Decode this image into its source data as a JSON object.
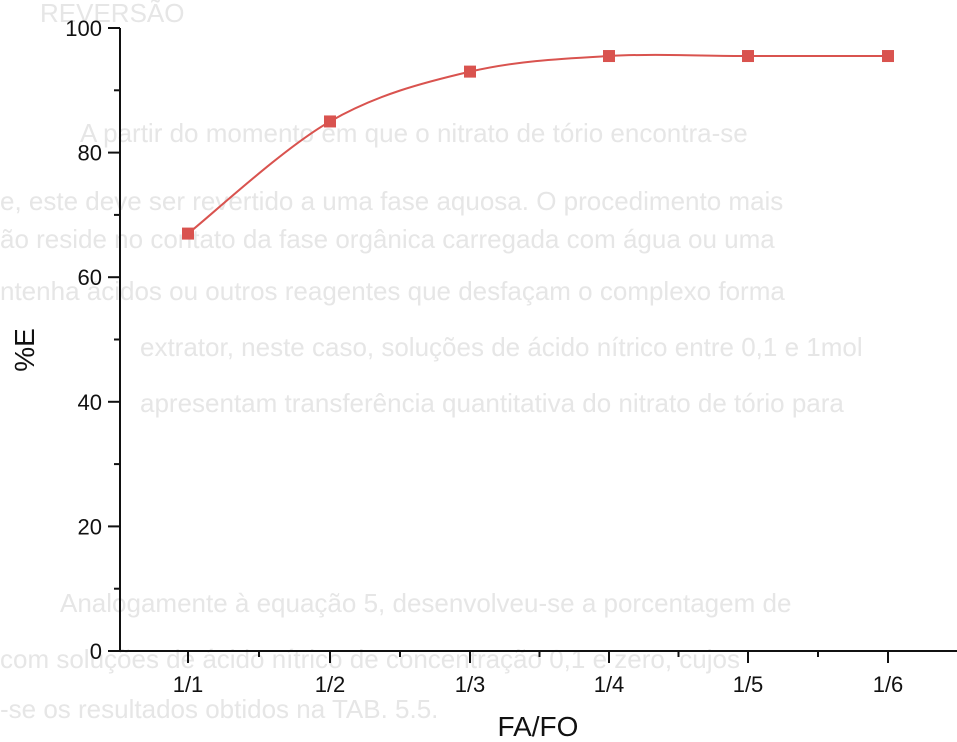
{
  "chart_data": {
    "type": "line",
    "title": "",
    "xlabel": "FA/FO",
    "ylabel": "%E",
    "categories": [
      "1/1",
      "1/2",
      "1/3",
      "1/4",
      "1/5",
      "1/6"
    ],
    "series": [
      {
        "values": [
          67,
          85,
          93,
          95.5,
          95.5,
          95.5
        ],
        "color": "#d9534f"
      }
    ],
    "ylim": [
      0,
      100
    ],
    "yticks": [
      0,
      20,
      40,
      60,
      80,
      100
    ],
    "grid": false,
    "legend": "none",
    "marker": "square"
  },
  "background_text": {
    "lines": [
      "REVERSÃO",
      "A partir do momento em que o nitrato de tório encontra-se",
      "e, este deve ser revertido a uma fase aquosa. O procedimento mais",
      "ão reside no contato da fase orgânica carregada com água ou uma",
      "ntenha ácidos ou outros reagentes que desfaçam o complexo forma",
      "extrator, neste caso, soluções de ácido nítrico entre 0,1 e 1mol",
      "apresentam transferência quantitativa do nitrato de tório para",
      "Analogamente à equação 5, desenvolveu-se a porcentagem de",
      "com soluções de ácido nítrico de concentração 0,1 e zero, cujos",
      "-se os resultados obtidos na TAB. 5.5."
    ]
  }
}
